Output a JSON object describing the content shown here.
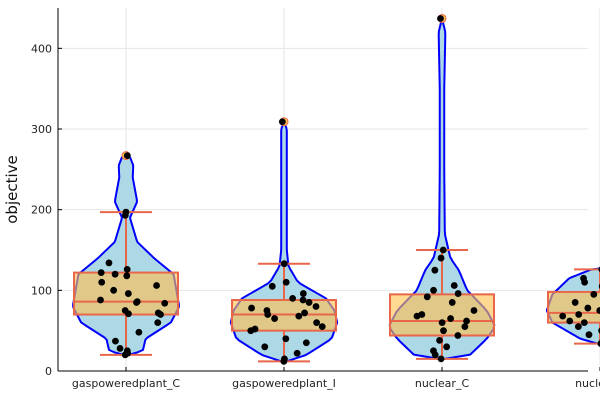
{
  "chart_data": {
    "type": "violin",
    "title": "",
    "xlabel": "",
    "ylabel": "objective",
    "ylim": [
      0,
      450
    ],
    "yticks": [
      0,
      100,
      200,
      300,
      400
    ],
    "grid": true,
    "categories": [
      "gaspoweredplant_C",
      "gaspoweredplant_I",
      "nuclear_C",
      "nuclear_I"
    ],
    "colors": {
      "violin_fill": "#add8e6",
      "violin_stroke": "#0000ff",
      "box_fill": "#ffc04d",
      "box_stroke": "#e8674a",
      "point": "#000000"
    },
    "groups": [
      {
        "name": "gaspoweredplant_C",
        "box": {
          "whisker_low": 20,
          "q1": 70,
          "median": 86,
          "q3": 122,
          "whisker_high": 197
        },
        "outliers": [
          267
        ],
        "violin": [
          [
            20,
            0.05
          ],
          [
            25,
            0.3
          ],
          [
            40,
            0.35
          ],
          [
            60,
            0.8
          ],
          [
            80,
            0.95
          ],
          [
            100,
            0.9
          ],
          [
            120,
            0.85
          ],
          [
            140,
            0.5
          ],
          [
            160,
            0.2
          ],
          [
            190,
            0.07
          ],
          [
            210,
            0.2
          ],
          [
            240,
            0.12
          ],
          [
            255,
            0.13
          ],
          [
            267,
            0.06
          ],
          [
            268,
            0
          ]
        ],
        "points": [
          20,
          22,
          25,
          28,
          37,
          48,
          60,
          70,
          71,
          72,
          75,
          84,
          85,
          86,
          88,
          96,
          100,
          106,
          110,
          118,
          120,
          122,
          126,
          134,
          193,
          197,
          267
        ]
      },
      {
        "name": "gaspoweredplant_I",
        "box": {
          "whisker_low": 12,
          "q1": 50,
          "median": 70,
          "q3": 88,
          "whisker_high": 133
        },
        "outliers": [
          309
        ],
        "violin": [
          [
            12,
            0.05
          ],
          [
            20,
            0.4
          ],
          [
            40,
            0.85
          ],
          [
            60,
            0.95
          ],
          [
            75,
            0.9
          ],
          [
            90,
            0.75
          ],
          [
            110,
            0.25
          ],
          [
            130,
            0.08
          ],
          [
            150,
            0.05
          ],
          [
            200,
            0.05
          ],
          [
            270,
            0.05
          ],
          [
            300,
            0.05
          ],
          [
            309,
            0
          ]
        ],
        "points": [
          12,
          15,
          22,
          30,
          35,
          40,
          50,
          52,
          55,
          60,
          65,
          68,
          70,
          72,
          75,
          78,
          80,
          85,
          88,
          90,
          96,
          105,
          110,
          133,
          309
        ]
      },
      {
        "name": "nuclear_C",
        "box": {
          "whisker_low": 15,
          "q1": 44,
          "median": 62,
          "q3": 95,
          "whisker_high": 150
        },
        "outliers": [
          437
        ],
        "violin": [
          [
            15,
            0.05
          ],
          [
            20,
            0.5
          ],
          [
            40,
            0.8
          ],
          [
            55,
            0.95
          ],
          [
            75,
            0.8
          ],
          [
            100,
            0.45
          ],
          [
            125,
            0.3
          ],
          [
            140,
            0.15
          ],
          [
            170,
            0.05
          ],
          [
            250,
            0.04
          ],
          [
            350,
            0.04
          ],
          [
            420,
            0.06
          ],
          [
            437,
            0
          ]
        ],
        "points": [
          15,
          20,
          25,
          30,
          38,
          44,
          50,
          55,
          60,
          62,
          65,
          68,
          70,
          75,
          85,
          92,
          96,
          100,
          106,
          125,
          140,
          150,
          437
        ]
      },
      {
        "name": "nuclear_I",
        "box": {
          "whisker_low": 34,
          "q1": 60,
          "median": 72,
          "q3": 98,
          "whisker_high": 126
        },
        "outliers": [],
        "violin": [
          [
            34,
            0.05
          ],
          [
            40,
            0.35
          ],
          [
            60,
            0.85
          ],
          [
            75,
            0.95
          ],
          [
            95,
            0.85
          ],
          [
            115,
            0.55
          ],
          [
            126,
            0.15
          ],
          [
            127,
            0
          ]
        ],
        "points": [
          34,
          38,
          45,
          50,
          55,
          60,
          62,
          65,
          68,
          70,
          72,
          75,
          78,
          80,
          85,
          88,
          95,
          98,
          100,
          102,
          105,
          110,
          115,
          120,
          126
        ]
      }
    ]
  }
}
